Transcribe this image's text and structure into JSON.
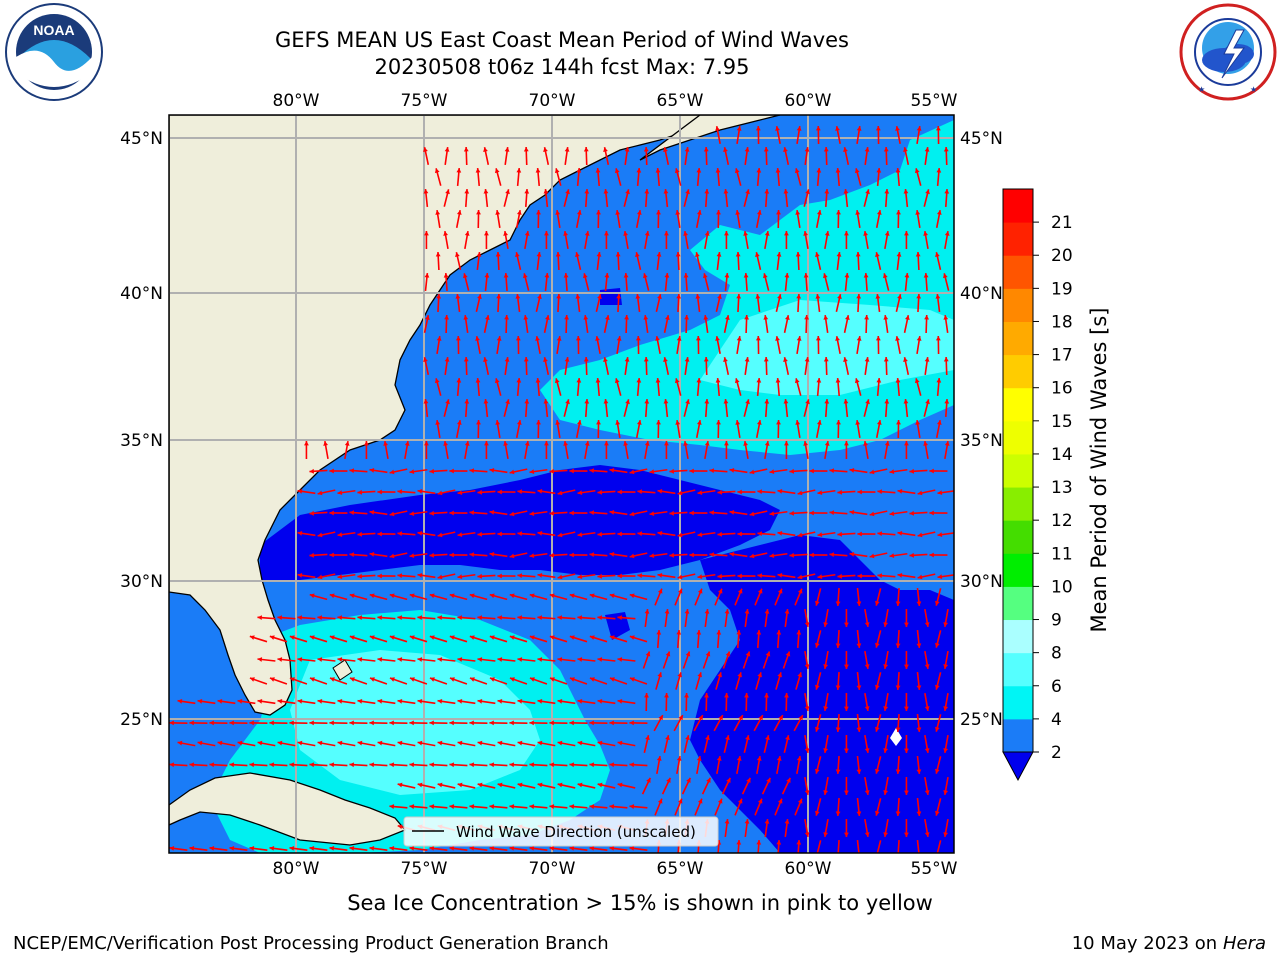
{
  "header": {
    "title_line1": "GEFS MEAN US East Coast Mean Period of Wind Waves",
    "title_line2": "20230508 t06z 144h fcst   Max: 7.95"
  },
  "logos": {
    "noaa": {
      "text": "NOAA",
      "ring_text": "NATIONAL OCEANIC AND ATMOSPHERIC ADMINISTRATION · U.S. DEPARTMENT OF COMMERCE"
    },
    "nws": {
      "ring_text": "NATIONAL WEATHER SERVICE"
    }
  },
  "map": {
    "lon_ticks": [
      "80°W",
      "75°W",
      "70°W",
      "65°W",
      "60°W",
      "55°W"
    ],
    "lat_ticks": [
      "45°N",
      "40°N",
      "35°N",
      "30°N",
      "25°N"
    ],
    "legend_label": "Wind Wave Direction (unscaled)",
    "colors": {
      "land": "#efeedb",
      "ocean_2_4": "#1a7cf7",
      "ocean_below_2": "#0000ee",
      "ocean_4_6": "#00f0f0",
      "ocean_6_8": "#55ffff",
      "arrow": "#ff0000",
      "grid": "#b0b0b0"
    }
  },
  "colorbar": {
    "label": "Mean Period of Wind Waves [s]",
    "ticks": [
      "2",
      "4",
      "6",
      "8",
      "9",
      "10",
      "11",
      "12",
      "13",
      "14",
      "15",
      "16",
      "17",
      "18",
      "19",
      "20",
      "21"
    ],
    "colors": [
      "#1b7cf7",
      "#00f5f5",
      "#55ffff",
      "#aaffff",
      "#55ff80",
      "#00ee00",
      "#44dd00",
      "#88ee00",
      "#ccff00",
      "#eeff00",
      "#ffff00",
      "#ffcc00",
      "#ffaa00",
      "#ff8800",
      "#ff5500",
      "#ff2200",
      "#ff0000"
    ],
    "extend_color": "#0000ee"
  },
  "footer": {
    "note": "Sea Ice Concentration > 15% is shown in pink to yellow",
    "left": "NCEP/EMC/Verification Post Processing Product Generation Branch",
    "right_date": "10 May 2023 on",
    "right_machine": "Hera"
  }
}
